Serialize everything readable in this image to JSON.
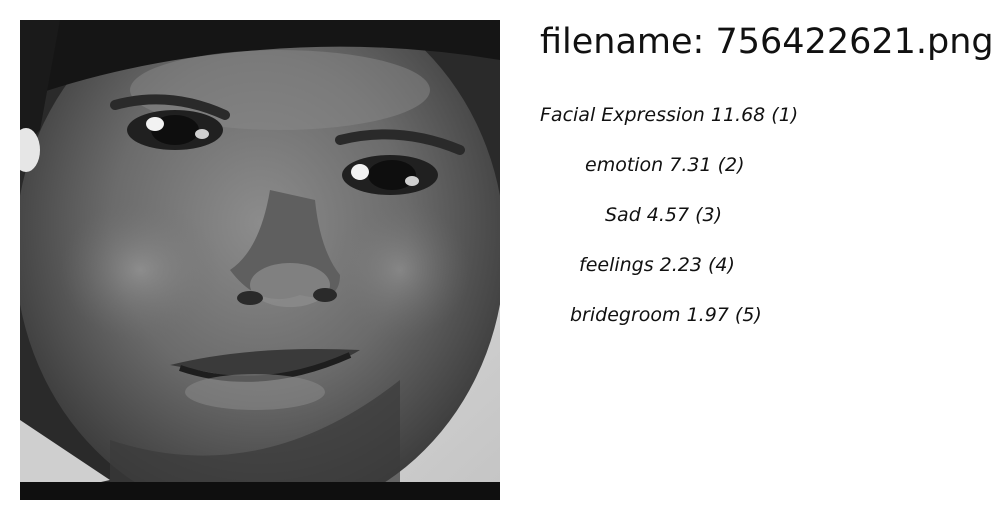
{
  "header": {
    "filename_prefix": "filename: ",
    "filename": "756422621.png"
  },
  "labels": [
    {
      "text": "Facial Expression 11.68 (1)"
    },
    {
      "text": "emotion  7.31 (2)"
    },
    {
      "text": "Sad  4.57 (3)"
    },
    {
      "text": "feelings  2.23 (4)"
    },
    {
      "text": "bridegroom  1.97 (5)"
    }
  ],
  "image": {
    "subject": "grayscale close-up photo of a child's face"
  }
}
